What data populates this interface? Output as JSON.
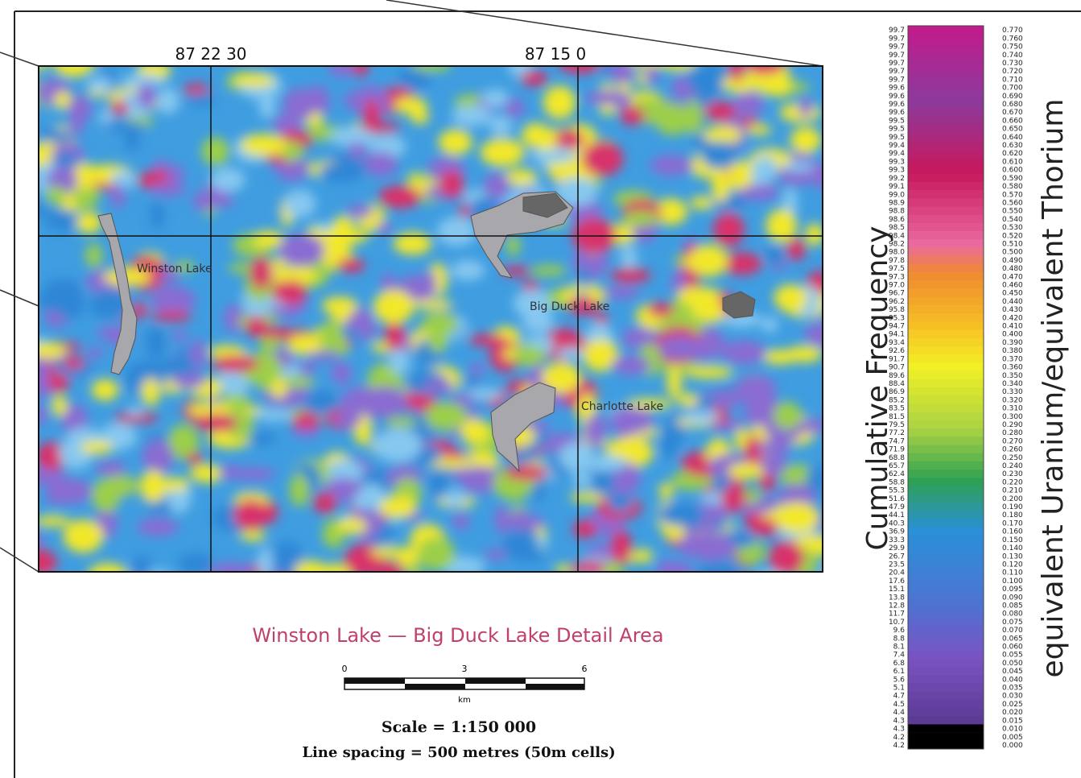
{
  "map": {
    "grid_labels": [
      "87 22 30",
      "87 15 0"
    ],
    "lakes": [
      "Winston Lake",
      "Big Duck Lake",
      "Charlotte Lake"
    ],
    "title": "Winston Lake — Big Duck Lake Detail Area",
    "scale_bar": {
      "ticks": [
        "0",
        "3",
        "6"
      ],
      "unit": "km"
    },
    "scale": "Scale = 1:150 000",
    "line_spacing": "Line spacing = 500 metres (50m cells)"
  },
  "legend": {
    "left_title": "Cumulative Frequency",
    "right_title": "equivalent Uranium/equivalent Thorium",
    "frequency": [
      "99.7",
      "99.7",
      "99.7",
      "99.7",
      "99.7",
      "99.7",
      "99.7",
      "99.6",
      "99.6",
      "99.6",
      "99.6",
      "99.5",
      "99.5",
      "99.5",
      "99.4",
      "99.4",
      "99.3",
      "99.3",
      "99.2",
      "99.1",
      "99.0",
      "98.9",
      "98.8",
      "98.6",
      "98.5",
      "98.4",
      "98.2",
      "98.0",
      "97.8",
      "97.5",
      "97.3",
      "97.0",
      "96.7",
      "96.2",
      "95.8",
      "95.3",
      "94.7",
      "94.1",
      "93.4",
      "92.6",
      "91.7",
      "90.7",
      "89.6",
      "88.4",
      "86.9",
      "85.2",
      "83.5",
      "81.5",
      "79.5",
      "77.2",
      "74.7",
      "71.9",
      "68.8",
      "65.7",
      "62.4",
      "58.8",
      "55.3",
      "51.6",
      "47.9",
      "44.1",
      "40.3",
      "36.9",
      "33.3",
      "29.9",
      "26.7",
      "23.5",
      "20.4",
      "17.6",
      "15.1",
      "13.8",
      "12.8",
      "11.7",
      "10.7",
      "9.6",
      "8.8",
      "8.1",
      "7.4",
      "6.8",
      "6.1",
      "5.6",
      "5.1",
      "4.7",
      "4.5",
      "4.4",
      "4.3",
      "4.3",
      "4.2",
      "4.2"
    ],
    "ratio": [
      "0.770",
      "0.760",
      "0.750",
      "0.740",
      "0.730",
      "0.720",
      "0.710",
      "0.700",
      "0.690",
      "0.680",
      "0.670",
      "0.660",
      "0.650",
      "0.640",
      "0.630",
      "0.620",
      "0.610",
      "0.600",
      "0.590",
      "0.580",
      "0.570",
      "0.560",
      "0.550",
      "0.540",
      "0.530",
      "0.520",
      "0.510",
      "0.500",
      "0.490",
      "0.480",
      "0.470",
      "0.460",
      "0.450",
      "0.440",
      "0.430",
      "0.420",
      "0.410",
      "0.400",
      "0.390",
      "0.380",
      "0.370",
      "0.360",
      "0.350",
      "0.340",
      "0.330",
      "0.320",
      "0.310",
      "0.300",
      "0.290",
      "0.280",
      "0.270",
      "0.260",
      "0.250",
      "0.240",
      "0.230",
      "0.220",
      "0.210",
      "0.200",
      "0.190",
      "0.180",
      "0.170",
      "0.160",
      "0.150",
      "0.140",
      "0.130",
      "0.120",
      "0.110",
      "0.100",
      "0.095",
      "0.090",
      "0.085",
      "0.080",
      "0.075",
      "0.070",
      "0.065",
      "0.060",
      "0.055",
      "0.050",
      "0.045",
      "0.040",
      "0.035",
      "0.030",
      "0.025",
      "0.020",
      "0.015",
      "0.010",
      "0.005",
      "0.000"
    ]
  }
}
